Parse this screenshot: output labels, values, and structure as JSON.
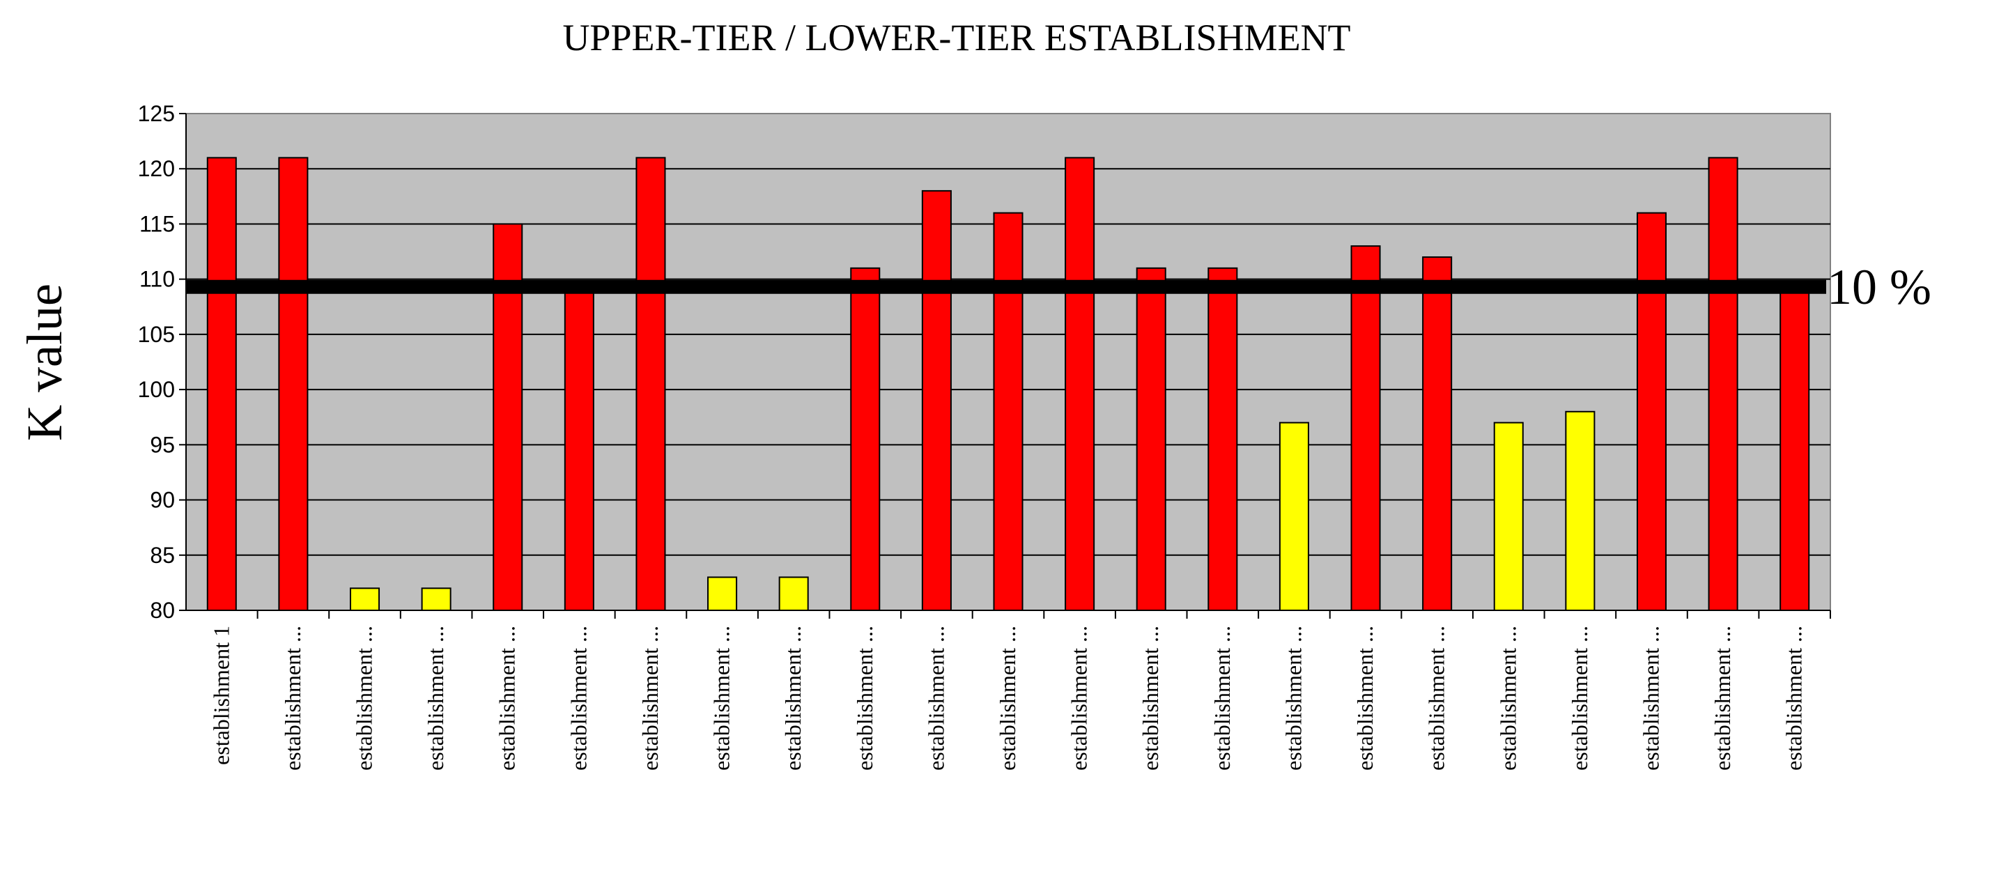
{
  "chart_data": {
    "type": "bar",
    "title": "UPPER-TIER / LOWER-TIER ESTABLISHMENT",
    "xlabel": "",
    "ylabel": "K value",
    "ylim": [
      80,
      125
    ],
    "yticks": [
      80,
      85,
      90,
      95,
      100,
      105,
      110,
      115,
      120,
      125
    ],
    "grid": true,
    "legend": "none",
    "categories": [
      "establishment 1",
      "establishment ...",
      "establishment ...",
      "establishment ...",
      "establishment ...",
      "establishment ...",
      "establishment ...",
      "establishment ...",
      "establishment ...",
      "establishment ...",
      "establishment ...",
      "establishment ...",
      "establishment ...",
      "establishment ...",
      "establishment ...",
      "establishment ...",
      "establishment ...",
      "establishment ...",
      "establishment ...",
      "establishment ...",
      "establishment ...",
      "establishment ...",
      "establishment ..."
    ],
    "values": [
      121,
      121,
      82,
      82,
      115,
      109,
      121,
      83,
      83,
      111,
      118,
      116,
      121,
      111,
      111,
      97,
      113,
      112,
      97,
      98,
      116,
      121,
      109
    ],
    "threshold": {
      "value": 109.3,
      "label": "10 %"
    },
    "colors": {
      "above": "#ff0000",
      "below": "#ffff00",
      "plot_background": "#c0c0c0",
      "gridline": "#000000",
      "threshold_line": "#000000"
    }
  }
}
